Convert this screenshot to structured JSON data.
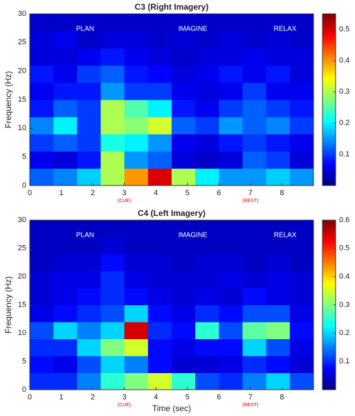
{
  "chart_data": [
    {
      "type": "heatmap",
      "title": "C3  (Right Imagery)",
      "ylabel": "Frequency (Hz)",
      "colormap": "jet",
      "xbins": [
        0,
        0.75,
        1.5,
        2.25,
        3,
        3.75,
        4.5,
        5.25,
        6,
        6.75,
        7.5,
        8.25,
        9
      ],
      "ybins": [
        0,
        3,
        6,
        9,
        12,
        15,
        18,
        21,
        24,
        27,
        30
      ],
      "z": [
        [
          0.12,
          0.14,
          0.18,
          0.3,
          0.4,
          0.5,
          0.3,
          0.2,
          0.15,
          0.15,
          0.18,
          0.15
        ],
        [
          0.06,
          0.05,
          0.08,
          0.3,
          0.15,
          0.12,
          0.05,
          0.04,
          0.05,
          0.12,
          0.1,
          0.05
        ],
        [
          0.1,
          0.12,
          0.1,
          0.22,
          0.2,
          0.15,
          0.06,
          0.05,
          0.08,
          0.1,
          0.08,
          0.06
        ],
        [
          0.14,
          0.2,
          0.1,
          0.3,
          0.28,
          0.32,
          0.12,
          0.1,
          0.15,
          0.12,
          0.14,
          0.1
        ],
        [
          0.08,
          0.12,
          0.1,
          0.3,
          0.25,
          0.2,
          0.08,
          0.06,
          0.1,
          0.12,
          0.1,
          0.08
        ],
        [
          0.06,
          0.08,
          0.08,
          0.15,
          0.1,
          0.1,
          0.06,
          0.05,
          0.06,
          0.1,
          0.06,
          0.06
        ],
        [
          0.08,
          0.06,
          0.1,
          0.12,
          0.08,
          0.07,
          0.05,
          0.06,
          0.08,
          0.06,
          0.08,
          0.05
        ],
        [
          0.05,
          0.05,
          0.06,
          0.08,
          0.06,
          0.05,
          0.04,
          0.05,
          0.05,
          0.06,
          0.05,
          0.05
        ],
        [
          0.05,
          0.06,
          0.04,
          0.05,
          0.05,
          0.04,
          0.05,
          0.04,
          0.05,
          0.04,
          0.05,
          0.04
        ],
        [
          0.04,
          0.04,
          0.04,
          0.04,
          0.04,
          0.04,
          0.04,
          0.04,
          0.04,
          0.04,
          0.04,
          0.04
        ]
      ],
      "xlim": [
        0,
        9
      ],
      "ylim": [
        0,
        30
      ],
      "xticks": [
        0,
        1,
        2,
        3,
        4,
        5,
        6,
        7,
        8
      ],
      "yticks": [
        0,
        5,
        10,
        15,
        20,
        25,
        30
      ],
      "clim": [
        0,
        0.55
      ],
      "cticks": [
        0.1,
        0.2,
        0.3,
        0.4,
        0.5
      ],
      "phases": [
        "PLAN",
        "IMAGINE",
        "RELAX"
      ],
      "events": [
        "(CUE)",
        "(REST)"
      ]
    },
    {
      "type": "heatmap",
      "title": "C4  (Left Imagery)",
      "ylabel": "Frequency (Hz)",
      "xlabel": "Time (sec)",
      "colormap": "jet",
      "xbins": [
        0,
        0.75,
        1.5,
        2.25,
        3,
        3.75,
        4.5,
        5.25,
        6,
        6.75,
        7.5,
        8.25,
        9
      ],
      "ybins": [
        0,
        3,
        6,
        9,
        12,
        15,
        18,
        21,
        24,
        27,
        30
      ],
      "z": [
        [
          0.1,
          0.1,
          0.15,
          0.25,
          0.3,
          0.35,
          0.25,
          0.12,
          0.1,
          0.15,
          0.2,
          0.12
        ],
        [
          0.08,
          0.06,
          0.12,
          0.2,
          0.15,
          0.08,
          0.05,
          0.05,
          0.06,
          0.1,
          0.08,
          0.05
        ],
        [
          0.1,
          0.1,
          0.2,
          0.3,
          0.35,
          0.08,
          0.06,
          0.08,
          0.08,
          0.2,
          0.12,
          0.06
        ],
        [
          0.12,
          0.2,
          0.15,
          0.2,
          0.55,
          0.1,
          0.08,
          0.25,
          0.12,
          0.28,
          0.3,
          0.08
        ],
        [
          0.06,
          0.08,
          0.1,
          0.12,
          0.2,
          0.08,
          0.06,
          0.1,
          0.08,
          0.12,
          0.12,
          0.06
        ],
        [
          0.05,
          0.06,
          0.08,
          0.1,
          0.08,
          0.06,
          0.05,
          0.06,
          0.05,
          0.08,
          0.06,
          0.05
        ],
        [
          0.05,
          0.06,
          0.06,
          0.1,
          0.06,
          0.05,
          0.05,
          0.05,
          0.06,
          0.05,
          0.06,
          0.05
        ],
        [
          0.04,
          0.05,
          0.05,
          0.08,
          0.05,
          0.05,
          0.04,
          0.05,
          0.05,
          0.04,
          0.05,
          0.04
        ],
        [
          0.04,
          0.04,
          0.04,
          0.05,
          0.04,
          0.04,
          0.04,
          0.04,
          0.04,
          0.04,
          0.04,
          0.04
        ],
        [
          0.04,
          0.04,
          0.04,
          0.04,
          0.04,
          0.04,
          0.04,
          0.04,
          0.04,
          0.04,
          0.04,
          0.04
        ]
      ],
      "xlim": [
        0,
        9
      ],
      "ylim": [
        0,
        30
      ],
      "xticks": [
        0,
        1,
        2,
        3,
        4,
        5,
        6,
        7,
        8
      ],
      "yticks": [
        0,
        5,
        10,
        15,
        20,
        25,
        30
      ],
      "clim": [
        0,
        0.6
      ],
      "cticks": [
        0.1,
        0.2,
        0.3,
        0.4,
        0.5,
        0.6
      ],
      "phases": [
        "PLAN",
        "IMAGINE",
        "RELAX"
      ],
      "events": [
        "(CUE)",
        "(REST)"
      ]
    }
  ]
}
